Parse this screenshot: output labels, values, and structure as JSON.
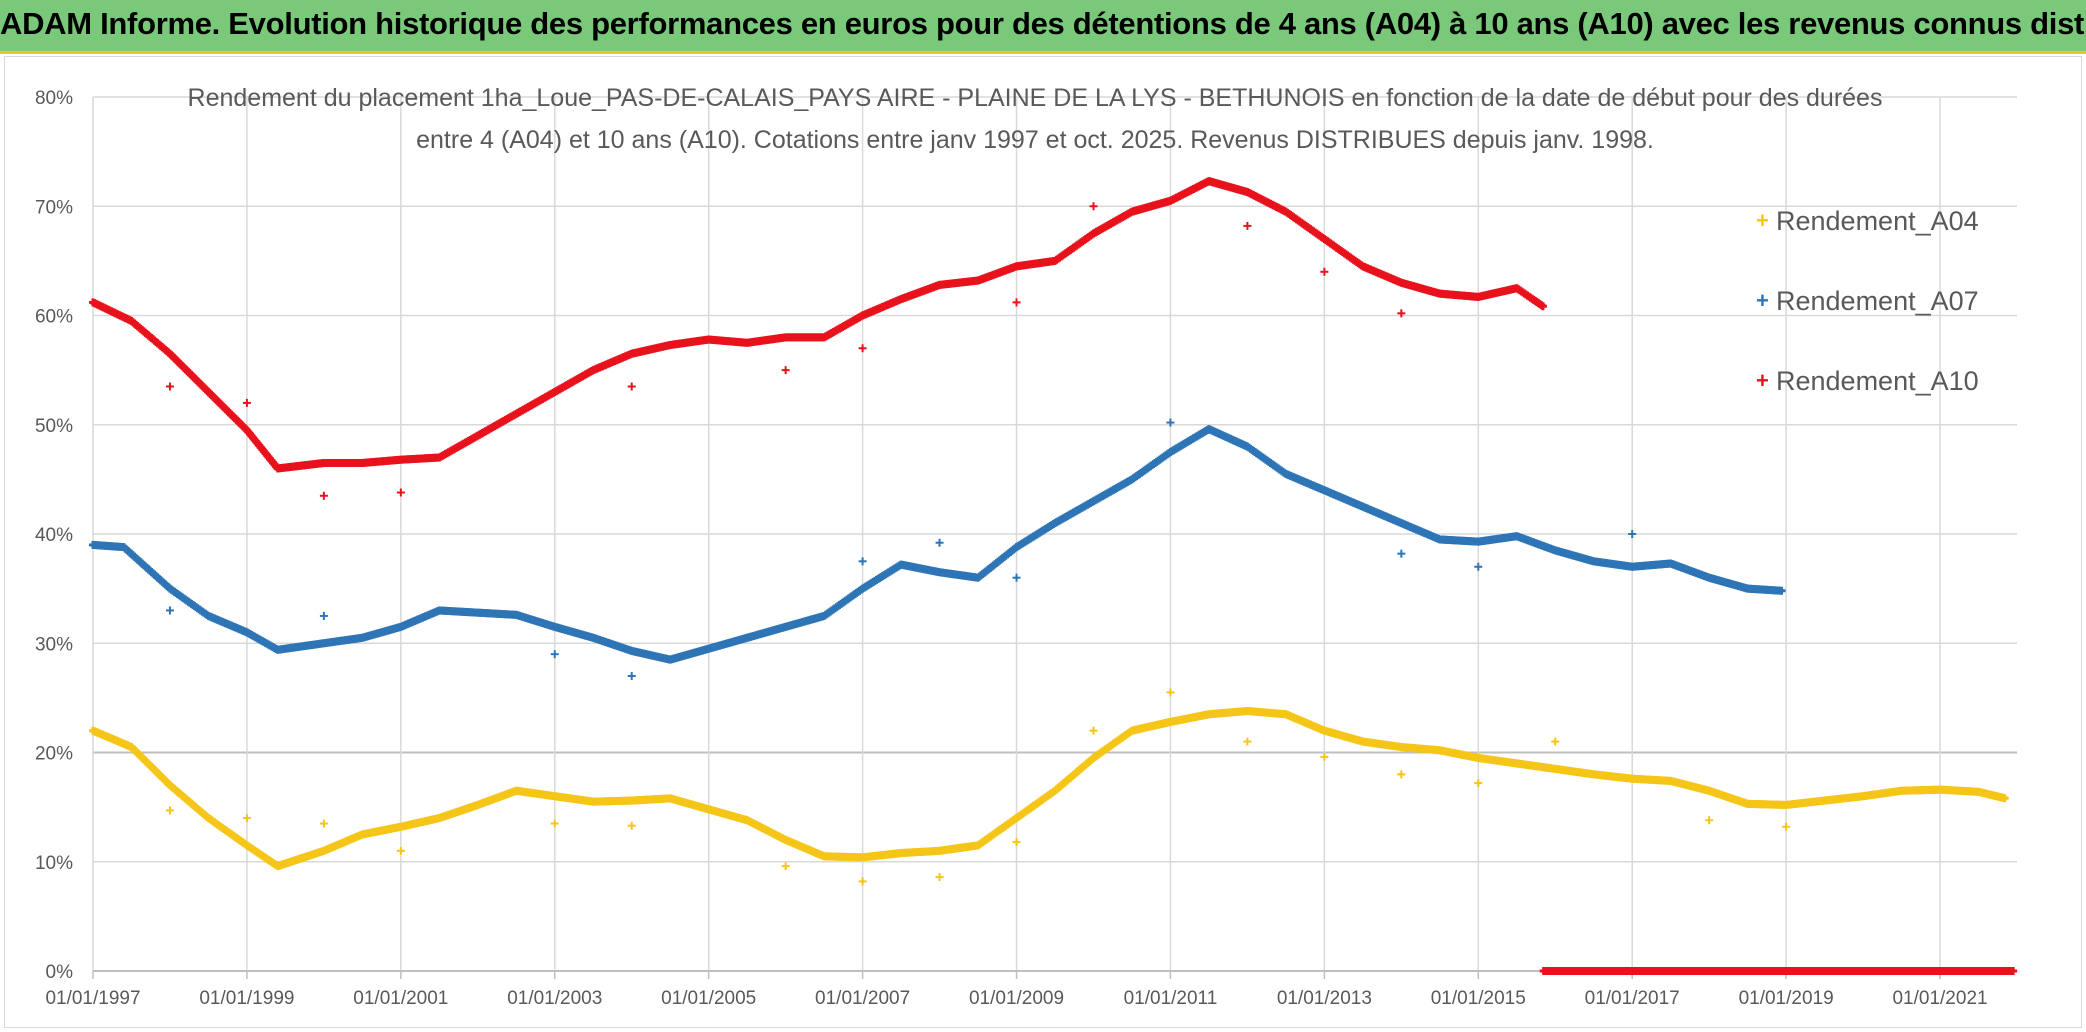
{
  "header": {
    "title": "ADAM Informe. Evolution historique des performances en euros pour des détentions de 4 ans (A04) à 10 ans (A10) avec les revenus connus distribués"
  },
  "colors": {
    "banner": "#7ac97a",
    "A04": "#f5c518",
    "A07": "#2e75b6",
    "A10": "#e8121c",
    "grid": "#d9d9d9",
    "axis_text": "#595959"
  },
  "chart_data": {
    "type": "scatter",
    "title_line1": "Rendement du placement 1ha_Loue_PAS-DE-CALAIS_PAYS AIRE - PLAINE DE LA LYS - BETHUNOIS en fonction de la date de début pour des durées",
    "title_line2": "entre 4 (A04) et 10 ans (A10). Cotations entre janv 1997 et oct. 2025. Revenus DISTRIBUES depuis janv. 1998.",
    "xlabel": "",
    "ylabel": "",
    "xlim": [
      1997.0,
      2022.0
    ],
    "ylim": [
      0,
      80
    ],
    "x_ticks": [
      1997,
      1999,
      2001,
      2003,
      2005,
      2007,
      2009,
      2011,
      2013,
      2015,
      2017,
      2019,
      2021
    ],
    "x_tick_labels": [
      "01/01/1997",
      "01/01/1999",
      "01/01/2001",
      "01/01/2003",
      "01/01/2005",
      "01/01/2007",
      "01/01/2009",
      "01/01/2011",
      "01/01/2013",
      "01/01/2015",
      "01/01/2017",
      "01/01/2019",
      "01/01/2021"
    ],
    "y_ticks": [
      0,
      10,
      20,
      30,
      40,
      50,
      60,
      70,
      80
    ],
    "y_tick_labels": [
      "0%",
      "10%",
      "20%",
      "30%",
      "40%",
      "50%",
      "60%",
      "70%",
      "80%"
    ],
    "legend": [
      "Rendement_A04",
      "Rendement_A07",
      "Rendement_A10"
    ],
    "legend_position": "right",
    "series": [
      {
        "name": "Rendement_A04",
        "color": "#f5c518",
        "x": [
          1997.0,
          1997.5,
          1998.0,
          1998.5,
          1999.0,
          1999.4,
          2000.0,
          2000.5,
          2001.0,
          2001.5,
          2002.0,
          2002.5,
          2003.0,
          2003.5,
          2004.0,
          2004.5,
          2005.0,
          2005.5,
          2006.0,
          2006.5,
          2007.0,
          2007.5,
          2008.0,
          2008.5,
          2009.0,
          2009.5,
          2010.0,
          2010.5,
          2011.0,
          2011.5,
          2012.0,
          2012.5,
          2013.0,
          2013.5,
          2014.0,
          2014.5,
          2015.0,
          2015.5,
          2016.0,
          2016.5,
          2017.0,
          2017.5,
          2018.0,
          2018.5,
          2019.0,
          2019.5,
          2020.0,
          2020.5,
          2021.0,
          2021.5,
          2021.85
        ],
        "y": [
          22.0,
          20.5,
          17.0,
          14.0,
          11.5,
          9.6,
          11.0,
          12.5,
          13.2,
          14.0,
          15.2,
          16.5,
          16.0,
          15.5,
          15.6,
          15.8,
          14.8,
          13.8,
          12.0,
          10.5,
          10.4,
          10.8,
          11.0,
          11.5,
          14.0,
          16.5,
          19.5,
          22.0,
          22.8,
          23.5,
          23.8,
          23.5,
          22.0,
          21.0,
          20.5,
          20.2,
          19.5,
          19.0,
          18.5,
          18.0,
          17.6,
          17.4,
          16.5,
          15.3,
          15.2,
          15.6,
          16.0,
          16.5,
          16.6,
          16.4,
          15.8
        ],
        "outliers_x": [
          1998.0,
          1999.0,
          2000.0,
          2001.0,
          2003.0,
          2004.0,
          2006.0,
          2007.0,
          2008.0,
          2009.0,
          2010.0,
          2011.0,
          2012.0,
          2013.0,
          2014.0,
          2015.0,
          2016.0,
          2018.0,
          2019.0
        ],
        "outliers_y": [
          14.7,
          14.0,
          13.5,
          11.0,
          13.5,
          13.3,
          9.6,
          8.2,
          8.6,
          11.8,
          22.0,
          25.5,
          21.0,
          19.6,
          18.0,
          17.2,
          21.0,
          13.8,
          13.2
        ]
      },
      {
        "name": "Rendement_A07",
        "color": "#2e75b6",
        "x": [
          1997.0,
          1997.4,
          1998.0,
          1998.5,
          1999.0,
          1999.4,
          2000.0,
          2000.5,
          2001.0,
          2001.5,
          2002.0,
          2002.5,
          2003.0,
          2003.5,
          2004.0,
          2004.5,
          2005.0,
          2005.5,
          2006.0,
          2006.5,
          2007.0,
          2007.5,
          2008.0,
          2008.5,
          2009.0,
          2009.5,
          2010.0,
          2010.5,
          2011.0,
          2011.5,
          2012.0,
          2012.5,
          2013.0,
          2013.5,
          2014.0,
          2014.5,
          2015.0,
          2015.5,
          2016.0,
          2016.5,
          2017.0,
          2017.5,
          2018.0,
          2018.5,
          2018.95
        ],
        "y": [
          39.0,
          38.8,
          35.0,
          32.5,
          31.0,
          29.4,
          30.0,
          30.5,
          31.5,
          33.0,
          32.8,
          32.6,
          31.5,
          30.5,
          29.3,
          28.5,
          29.5,
          30.5,
          31.5,
          32.5,
          35.0,
          37.2,
          36.5,
          36.0,
          38.8,
          41.0,
          43.0,
          45.0,
          47.5,
          49.6,
          48.0,
          45.5,
          44.0,
          42.5,
          41.0,
          39.5,
          39.3,
          39.8,
          38.5,
          37.5,
          37.0,
          37.3,
          36.0,
          35.0,
          34.8
        ],
        "outliers_x": [
          1998.0,
          2000.0,
          2003.0,
          2004.0,
          2007.0,
          2008.0,
          2009.0,
          2011.0,
          2014.0,
          2015.0,
          2017.0
        ],
        "outliers_y": [
          33.0,
          32.5,
          29.0,
          27.0,
          37.5,
          39.2,
          36.0,
          50.2,
          38.2,
          37.0,
          40.0
        ]
      },
      {
        "name": "Rendement_A10",
        "color": "#e8121c",
        "x": [
          1997.0,
          1997.5,
          1998.0,
          1998.5,
          1999.0,
          1999.4,
          2000.0,
          2000.5,
          2001.0,
          2001.5,
          2002.0,
          2002.5,
          2003.0,
          2003.5,
          2004.0,
          2004.5,
          2005.0,
          2005.5,
          2006.0,
          2006.5,
          2007.0,
          2007.5,
          2008.0,
          2008.5,
          2009.0,
          2009.5,
          2010.0,
          2010.5,
          2011.0,
          2011.5,
          2012.0,
          2012.5,
          2013.0,
          2013.5,
          2014.0,
          2014.5,
          2015.0,
          2015.5,
          2015.85
        ],
        "y": [
          61.2,
          59.5,
          56.5,
          53.0,
          49.5,
          46.0,
          46.5,
          46.5,
          46.8,
          47.0,
          49.0,
          51.0,
          53.0,
          55.0,
          56.5,
          57.3,
          57.8,
          57.5,
          58.0,
          58.0,
          60.0,
          61.5,
          62.8,
          63.2,
          64.5,
          65.0,
          67.5,
          69.5,
          70.5,
          72.3,
          71.3,
          69.5,
          67.0,
          64.5,
          63.0,
          62.0,
          61.7,
          62.5,
          60.8
        ],
        "outliers_x": [
          1998.0,
          1999.0,
          2000.0,
          2001.0,
          2004.0,
          2006.0,
          2007.0,
          2009.0,
          2010.0,
          2012.0,
          2013.0,
          2014.0
        ],
        "outliers_y": [
          53.5,
          52.0,
          43.5,
          43.8,
          53.5,
          55.0,
          57.0,
          61.2,
          70.0,
          68.2,
          64.0,
          60.2
        ],
        "zero_x_range": [
          2015.85,
          2021.95
        ],
        "zero_y": 0
      }
    ]
  }
}
